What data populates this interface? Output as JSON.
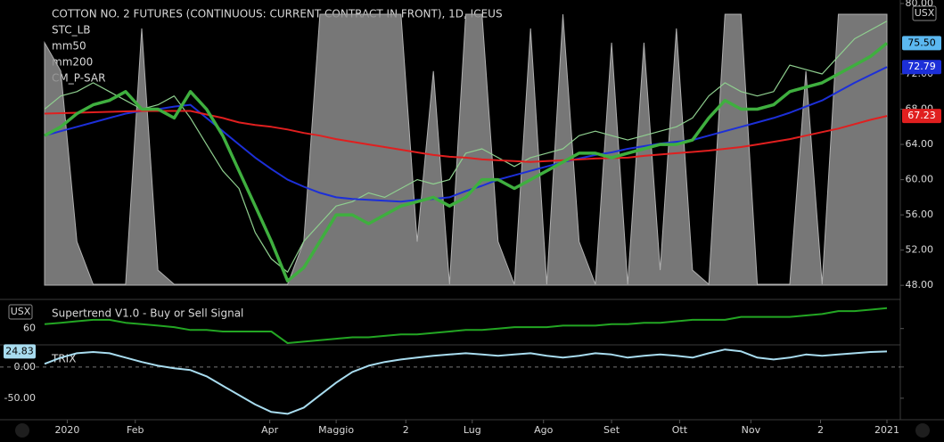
{
  "chart_data": [
    {
      "type": "line",
      "title": "COTTON NO. 2 FUTURES (CONTINUOUS: CURRENT CONTRACT IN FRONT), 1D, ICEUS",
      "unit": "USX",
      "x": [
        0,
        1,
        2,
        3,
        4,
        5,
        6,
        7,
        8,
        9,
        10,
        11,
        12,
        13,
        14,
        15,
        16,
        17,
        18,
        19,
        20,
        21,
        22,
        23,
        24,
        25,
        26,
        27,
        28,
        29,
        30,
        31,
        32,
        33,
        34,
        35,
        36,
        37,
        38,
        39,
        40,
        41,
        42,
        43,
        44,
        45,
        46,
        47,
        48,
        49,
        50,
        51,
        52
      ],
      "xlim": [
        0,
        52
      ],
      "ylim": [
        46.5,
        80.4
      ],
      "y2lim": [
        0,
        105
      ],
      "yticks": [
        {
          "value": 80,
          "label": "80.00"
        },
        {
          "value": 72,
          "label": "72.00"
        },
        {
          "value": 68,
          "label": "68.00"
        },
        {
          "value": 64,
          "label": "64.00"
        },
        {
          "value": 60,
          "label": "60.00"
        },
        {
          "value": 56,
          "label": "56.00"
        },
        {
          "value": 52,
          "label": "52.00"
        },
        {
          "value": 48,
          "label": "48.00"
        }
      ],
      "series": [
        {
          "name": "STC_LB",
          "color": "#8c8c8c",
          "axis": "y2",
          "style": "area",
          "values": [
            90,
            80,
            20,
            5,
            5,
            5,
            95,
            10,
            5,
            5,
            5,
            5,
            5,
            5,
            5,
            5,
            20,
            100,
            100,
            100,
            100,
            100,
            100,
            20,
            80,
            5,
            100,
            100,
            20,
            5,
            95,
            5,
            100,
            20,
            5,
            90,
            5,
            90,
            10,
            95,
            10,
            5,
            100,
            100,
            5,
            5,
            5,
            80,
            5,
            100,
            100,
            100,
            100
          ]
        },
        {
          "color": "#8fcf8f",
          "values": [
            68,
            69.5,
            70,
            71,
            70,
            69,
            68,
            68.5,
            69.5,
            67,
            64,
            61,
            59,
            54,
            51,
            49.5,
            53,
            55,
            57,
            57.5,
            58.5,
            58,
            59,
            60,
            59.5,
            60,
            63,
            63.5,
            62.5,
            61.5,
            62.5,
            63,
            63.5,
            65,
            65.5,
            65,
            64.5,
            65,
            65.5,
            66,
            67,
            69.5,
            71,
            70,
            69.5,
            70,
            73,
            72.5,
            72,
            74,
            76,
            77,
            78
          ]
        },
        {
          "name": "mm50",
          "color": "#1c2fd8",
          "values": [
            65,
            65.5,
            66,
            66.5,
            67,
            67.5,
            67.8,
            68,
            68.3,
            68.5,
            67,
            65.5,
            64,
            62.5,
            61.2,
            60,
            59.2,
            58.5,
            58,
            57.8,
            57.7,
            57.6,
            57.5,
            57.7,
            57.8,
            58,
            58.7,
            59.3,
            60,
            60.5,
            61,
            61.5,
            62,
            62.4,
            62.8,
            63.1,
            63.5,
            63.8,
            64.1,
            64.3,
            64.5,
            65,
            65.5,
            66,
            66.5,
            67,
            67.6,
            68.3,
            69,
            70,
            71,
            71.9,
            72.79
          ]
        },
        {
          "name": "mm200",
          "color": "#e01f1f",
          "values": [
            67.5,
            67.55,
            67.6,
            67.65,
            67.7,
            67.75,
            67.8,
            67.8,
            67.8,
            67.8,
            67.4,
            67,
            66.5,
            66.2,
            66,
            65.7,
            65.3,
            65,
            64.6,
            64.3,
            64,
            63.7,
            63.4,
            63.1,
            62.8,
            62.6,
            62.5,
            62.3,
            62.2,
            62.1,
            62,
            62.1,
            62.2,
            62.3,
            62.4,
            62.45,
            62.5,
            62.7,
            62.85,
            63,
            63.15,
            63.3,
            63.5,
            63.7,
            64,
            64.3,
            64.6,
            65,
            65.4,
            65.8,
            66.3,
            66.8,
            67.23
          ]
        },
        {
          "name": "CM_P-SAR",
          "color": "#3faf3f",
          "values": [
            65,
            66,
            67.5,
            68.5,
            69,
            70,
            68,
            68,
            67,
            70,
            68,
            65,
            61,
            57,
            53,
            48.5,
            50,
            53,
            56,
            56,
            55,
            56,
            57,
            57.5,
            58,
            57,
            58,
            60,
            60,
            59,
            60,
            61,
            62,
            63,
            63,
            62.5,
            63,
            63.5,
            64,
            64,
            64.5,
            67,
            69,
            68,
            68,
            68.5,
            70,
            70.5,
            71,
            72,
            73,
            74,
            75.5
          ]
        }
      ],
      "price_labels": [
        {
          "value": 75.5,
          "label": "75.50",
          "color": "#5bb8f0"
        },
        {
          "value": 72.79,
          "label": "72.79",
          "color": "#1c2fd8"
        },
        {
          "value": 67.23,
          "label": "67.23",
          "color": "#e01f1f"
        }
      ]
    },
    {
      "type": "line",
      "title": "Supertrend V1.0 - Buy or Sell Signal",
      "unit": "USX",
      "x": [
        0,
        1,
        2,
        3,
        4,
        5,
        6,
        7,
        8,
        9,
        10,
        11,
        12,
        13,
        14,
        15,
        16,
        17,
        18,
        19,
        20,
        21,
        22,
        23,
        24,
        25,
        26,
        27,
        28,
        29,
        30,
        31,
        32,
        33,
        34,
        35,
        36,
        37,
        38,
        39,
        40,
        41,
        42,
        43,
        44,
        45,
        46,
        47,
        48,
        49,
        50,
        51,
        52
      ],
      "xlim": [
        0,
        52
      ],
      "ylim": [
        54.7,
        69.7
      ],
      "yticks": [
        60
      ],
      "series": [
        {
          "color": "#23a623",
          "values": [
            61.5,
            62,
            62.5,
            63,
            63,
            62,
            61.5,
            61,
            60.5,
            59.5,
            59.5,
            59,
            59,
            59,
            59,
            55,
            55.5,
            56,
            56.5,
            57,
            57,
            57.5,
            58,
            58,
            58.5,
            59,
            59.5,
            59.5,
            60,
            60.5,
            60.5,
            60.5,
            61,
            61,
            61,
            61.5,
            61.5,
            62,
            62,
            62.5,
            63,
            63,
            63,
            64,
            64,
            64,
            64,
            64.5,
            65,
            66,
            66,
            66.5,
            67
          ]
        }
      ]
    },
    {
      "type": "line",
      "title": "TRIX",
      "x": [
        0,
        1,
        2,
        3,
        4,
        5,
        6,
        7,
        8,
        9,
        10,
        11,
        12,
        13,
        14,
        15,
        16,
        17,
        18,
        19,
        20,
        21,
        22,
        23,
        24,
        25,
        26,
        27,
        28,
        29,
        30,
        31,
        32,
        33,
        34,
        35,
        36,
        37,
        38,
        39,
        40,
        41,
        42,
        43,
        44,
        45,
        46,
        47,
        48,
        49,
        50,
        51,
        52
      ],
      "xlim": [
        0,
        52
      ],
      "ylim": [
        -83,
        34
      ],
      "yticks": [
        {
          "value": 0,
          "label": "0.00"
        },
        {
          "value": -50,
          "label": "-50.00"
        }
      ],
      "xticks": [
        {
          "value": 1.4,
          "label": "2020"
        },
        {
          "value": 5.6,
          "label": "Feb"
        },
        {
          "value": 13.9,
          "label": "Apr"
        },
        {
          "value": 18,
          "label": "Maggio"
        },
        {
          "value": 22.3,
          "label": "2"
        },
        {
          "value": 26.4,
          "label": "Lug"
        },
        {
          "value": 30.8,
          "label": "Ago"
        },
        {
          "value": 35,
          "label": "Set"
        },
        {
          "value": 39.2,
          "label": "Ott"
        },
        {
          "value": 43.6,
          "label": "Nov"
        },
        {
          "value": 47.9,
          "label": "2"
        },
        {
          "value": 52,
          "label": "2021"
        }
      ],
      "series": [
        {
          "color": "#a8dcef",
          "values": [
            5,
            15,
            22,
            24,
            22,
            15,
            8,
            2,
            -2,
            -5,
            -15,
            -30,
            -45,
            -60,
            -72,
            -75,
            -65,
            -45,
            -25,
            -8,
            2,
            8,
            12,
            15,
            18,
            20,
            22,
            20,
            18,
            20,
            22,
            18,
            15,
            18,
            22,
            20,
            15,
            18,
            20,
            18,
            15,
            22,
            28,
            25,
            15,
            12,
            15,
            20,
            18,
            20,
            22,
            24,
            24.83
          ]
        }
      ],
      "price_labels": [
        {
          "value": 24.83,
          "label": "24.83",
          "color": "#a8dcef"
        }
      ]
    }
  ]
}
